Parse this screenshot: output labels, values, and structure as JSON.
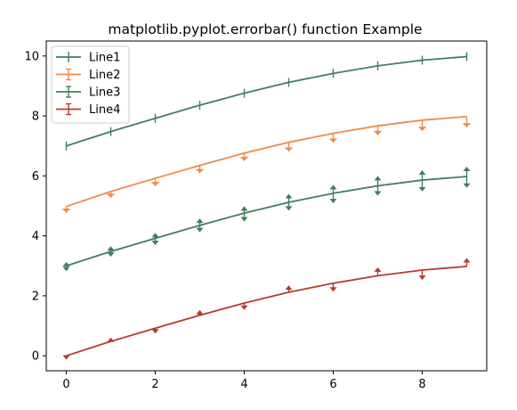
{
  "chart_data": {
    "type": "line",
    "title": "matplotlib.pyplot.errorbar() function Example",
    "xlabel": "",
    "ylabel": "",
    "xlim": [
      -0.45,
      9.45
    ],
    "ylim": [
      -0.5,
      10.5
    ],
    "xticks": [
      0,
      2,
      4,
      6,
      8
    ],
    "yticks": [
      0,
      2,
      4,
      6,
      8,
      10
    ],
    "grid": false,
    "legend": "top-left",
    "x": [
      0,
      1,
      2,
      3,
      4,
      5,
      6,
      7,
      8,
      9
    ],
    "series": [
      {
        "name": "Line1",
        "color": "#3f7f5f",
        "marker": "plus",
        "values": [
          7.0,
          7.48,
          7.92,
          8.36,
          8.76,
          9.12,
          9.42,
          9.67,
          9.86,
          9.98
        ],
        "err_low": [
          0,
          0,
          0,
          0,
          0,
          0,
          0,
          0,
          0,
          0
        ],
        "err_high": [
          0,
          0,
          0,
          0,
          0,
          0,
          0,
          0,
          0,
          0.1
        ]
      },
      {
        "name": "Line2",
        "color": "#f08a4b",
        "marker": "caret",
        "values": [
          4.98,
          5.48,
          5.92,
          6.35,
          6.76,
          7.12,
          7.42,
          7.67,
          7.86,
          7.98
        ],
        "err_low": [
          0.1,
          0.1,
          0.15,
          0.15,
          0.15,
          0.2,
          0.2,
          0.2,
          0.25,
          0.25
        ],
        "err_high": [
          0,
          0,
          0,
          0,
          0,
          0,
          0,
          0,
          0,
          0
        ]
      },
      {
        "name": "Line3",
        "color": "#3f7f5f",
        "marker": "arrow",
        "values": [
          3.0,
          3.48,
          3.92,
          4.35,
          4.76,
          5.12,
          5.42,
          5.67,
          5.86,
          5.98
        ],
        "err_low": [
          0.15,
          0.15,
          0.2,
          0.2,
          0.25,
          0.25,
          0.3,
          0.3,
          0.35,
          0.35
        ],
        "err_high": [
          0.1,
          0.15,
          0.15,
          0.2,
          0.2,
          0.25,
          0.25,
          0.3,
          0.3,
          0.3
        ]
      },
      {
        "name": "Line4",
        "color": "#b73a2e",
        "marker": "arrow",
        "values": [
          0.0,
          0.48,
          0.92,
          1.35,
          1.76,
          2.12,
          2.42,
          2.67,
          2.86,
          2.98
        ],
        "err_low": [
          0.1,
          0,
          0.15,
          0,
          0.2,
          0,
          0.25,
          0,
          0.3,
          0
        ],
        "err_high": [
          0,
          0.1,
          0,
          0.15,
          0,
          0.2,
          0,
          0.25,
          0,
          0.25
        ]
      }
    ]
  }
}
